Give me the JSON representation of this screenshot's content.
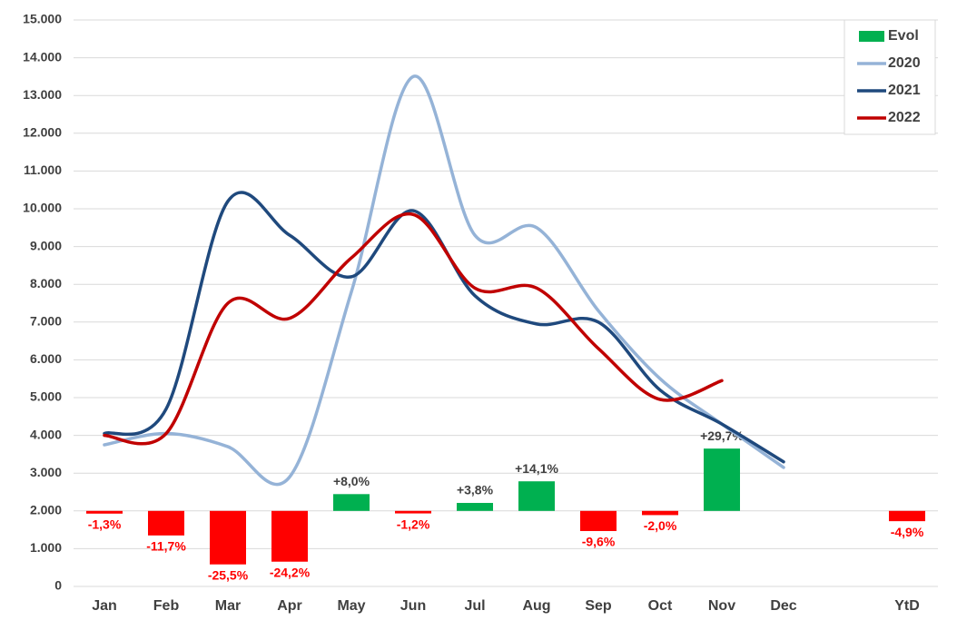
{
  "chart_data": {
    "type": "line",
    "categories": [
      "Jan",
      "Feb",
      "Mar",
      "Apr",
      "May",
      "Jun",
      "Jul",
      "Aug",
      "Sep",
      "Oct",
      "Nov",
      "Dec",
      null,
      "YtD"
    ],
    "ylim": [
      0,
      15000
    ],
    "yticks": [
      0,
      {
        "value": 1000,
        "label": "1.000"
      },
      {
        "value": 2000,
        "label": "2.000"
      },
      {
        "value": 3000,
        "label": "3.000"
      },
      {
        "value": 4000,
        "label": "4.000"
      },
      {
        "value": 5000,
        "label": "5.000"
      },
      {
        "value": 6000,
        "label": "6.000"
      },
      {
        "value": 7000,
        "label": "7.000"
      },
      {
        "value": 8000,
        "label": "8.000"
      },
      {
        "value": 9000,
        "label": "9.000"
      },
      {
        "value": 10000,
        "label": "10.000"
      },
      {
        "value": 11000,
        "label": "11.000"
      },
      {
        "value": 12000,
        "label": "12.000"
      },
      {
        "value": 13000,
        "label": "13.000"
      },
      {
        "value": 14000,
        "label": "14.000"
      },
      {
        "value": 15000,
        "label": "15.000"
      }
    ],
    "y2lim": [
      -36,
      234
    ],
    "grid": true,
    "legend": "top-right",
    "series": [
      {
        "name": "Evol",
        "type": "bar",
        "axis": "y2",
        "color": "#00b050",
        "negative_color": "#ff0000",
        "values": [
          -1.3,
          -11.7,
          -25.5,
          -24.2,
          8.0,
          -1.2,
          3.8,
          14.1,
          -9.6,
          -2.0,
          29.7,
          null,
          null,
          -4.9
        ],
        "value_labels": [
          "-1,3%",
          "-11,7%",
          "-25,5%",
          "-24,2%",
          "+8,0%",
          "-1,2%",
          "+3,8%",
          "+14,1%",
          "-9,6%",
          "-2,0%",
          "+29,7%",
          null,
          null,
          "-4,9%"
        ]
      },
      {
        "name": "2020",
        "color": "#95b3d7",
        "values": [
          3750,
          4050,
          3700,
          2900,
          7800,
          13500,
          9300,
          9500,
          7300,
          5500,
          4300,
          3150,
          null,
          null
        ]
      },
      {
        "name": "2021",
        "color": "#1f497d",
        "values": [
          4050,
          4700,
          10200,
          9300,
          8200,
          9950,
          7700,
          6950,
          7000,
          5200,
          4300,
          3300,
          null,
          null
        ]
      },
      {
        "name": "2022",
        "color": "#c00000",
        "values": [
          4000,
          4050,
          7500,
          7100,
          8700,
          9850,
          7900,
          7900,
          6300,
          4950,
          5450,
          null,
          null,
          null
        ]
      }
    ]
  }
}
